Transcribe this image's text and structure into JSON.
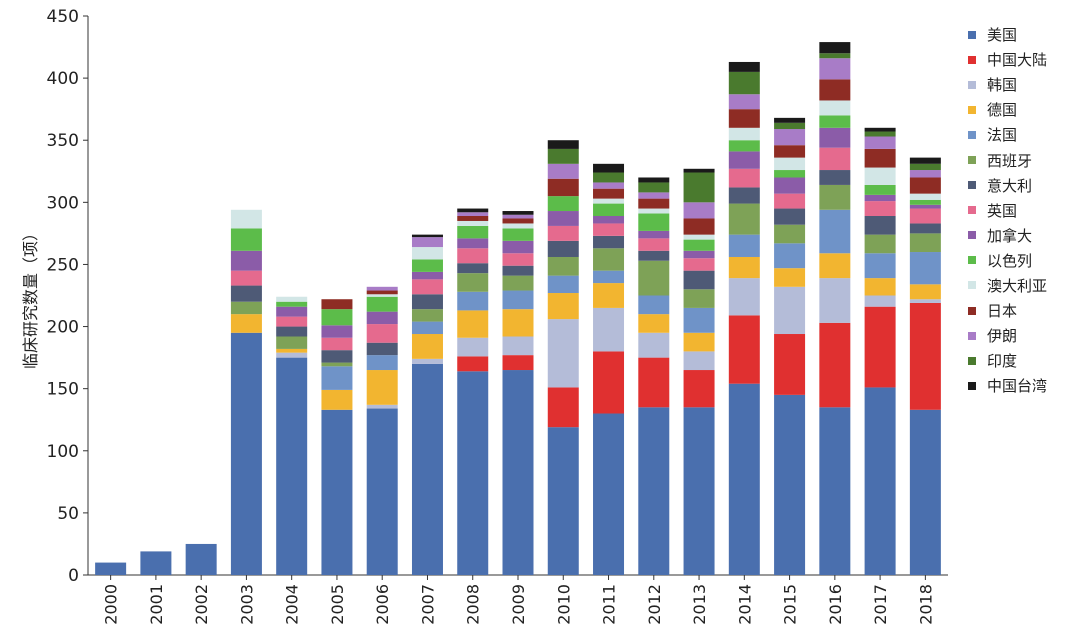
{
  "chart_data": {
    "type": "bar",
    "stacked": true,
    "title": "",
    "xlabel": "",
    "ylabel": "临床研究数量（项）",
    "ylim": [
      0,
      450
    ],
    "yticks": [
      0,
      50,
      100,
      150,
      200,
      250,
      300,
      350,
      400,
      450
    ],
    "grid": false,
    "legend_position": "right",
    "categories": [
      "2000",
      "2001",
      "2002",
      "2003",
      "2004",
      "2005",
      "2006",
      "2007",
      "2008",
      "2009",
      "2010",
      "2011",
      "2012",
      "2013",
      "2014",
      "2015",
      "2016",
      "2017",
      "2018"
    ],
    "series": [
      {
        "name": "美国",
        "color": "#4a6fae",
        "values": [
          10,
          19,
          25,
          195,
          175,
          133,
          134,
          170,
          164,
          165,
          119,
          130,
          135,
          135,
          154,
          145,
          135,
          151,
          133
        ]
      },
      {
        "name": "中国大陆",
        "color": "#e03030",
        "values": [
          0,
          0,
          0,
          0,
          0,
          0,
          0,
          0,
          12,
          12,
          32,
          50,
          40,
          30,
          55,
          49,
          68,
          65,
          86
        ]
      },
      {
        "name": "韩国",
        "color": "#b4bcd8",
        "values": [
          0,
          0,
          0,
          0,
          4,
          0,
          3,
          4,
          15,
          15,
          55,
          35,
          20,
          15,
          30,
          38,
          36,
          9,
          3
        ]
      },
      {
        "name": "德国",
        "color": "#f2b530",
        "values": [
          0,
          0,
          0,
          15,
          3,
          16,
          28,
          20,
          22,
          22,
          21,
          20,
          15,
          15,
          17,
          15,
          20,
          14,
          12
        ]
      },
      {
        "name": "法国",
        "color": "#6f93c8",
        "values": [
          0,
          0,
          0,
          0,
          0,
          19,
          12,
          10,
          15,
          15,
          14,
          10,
          15,
          20,
          18,
          20,
          35,
          20,
          26
        ]
      },
      {
        "name": "西班牙",
        "color": "#7ea257",
        "values": [
          0,
          0,
          0,
          10,
          10,
          3,
          0,
          10,
          15,
          12,
          15,
          18,
          28,
          15,
          25,
          15,
          20,
          15,
          15
        ]
      },
      {
        "name": "意大利",
        "color": "#4e5a76",
        "values": [
          0,
          0,
          0,
          13,
          8,
          10,
          10,
          12,
          8,
          8,
          13,
          10,
          8,
          15,
          13,
          13,
          12,
          15,
          8
        ]
      },
      {
        "name": "英国",
        "color": "#e56a8e",
        "values": [
          0,
          0,
          0,
          12,
          8,
          10,
          15,
          12,
          12,
          10,
          12,
          10,
          10,
          10,
          15,
          12,
          18,
          12,
          12
        ]
      },
      {
        "name": "加拿大",
        "color": "#8b5ca8",
        "values": [
          0,
          0,
          0,
          16,
          8,
          10,
          10,
          6,
          8,
          10,
          12,
          6,
          6,
          6,
          14,
          13,
          16,
          5,
          3
        ]
      },
      {
        "name": "以色列",
        "color": "#5cbc4a",
        "values": [
          0,
          0,
          0,
          18,
          4,
          13,
          12,
          10,
          10,
          10,
          12,
          10,
          14,
          9,
          9,
          6,
          10,
          8,
          4
        ]
      },
      {
        "name": "澳大利亚",
        "color": "#d2e6e6",
        "values": [
          0,
          0,
          0,
          15,
          4,
          0,
          2,
          10,
          4,
          4,
          0,
          4,
          4,
          4,
          10,
          10,
          12,
          14,
          5
        ]
      },
      {
        "name": "日本",
        "color": "#8e2c24",
        "values": [
          0,
          0,
          0,
          0,
          0,
          8,
          3,
          0,
          4,
          4,
          14,
          8,
          8,
          13,
          15,
          10,
          17,
          15,
          13
        ]
      },
      {
        "name": "伊朗",
        "color": "#a87cc7",
        "values": [
          0,
          0,
          0,
          0,
          0,
          0,
          3,
          8,
          3,
          3,
          12,
          5,
          5,
          13,
          12,
          13,
          17,
          10,
          6
        ]
      },
      {
        "name": "印度",
        "color": "#4a7a2e",
        "values": [
          0,
          0,
          0,
          0,
          0,
          0,
          0,
          0,
          0,
          0,
          12,
          8,
          8,
          24,
          18,
          5,
          4,
          4,
          5
        ]
      },
      {
        "name": "中国台湾",
        "color": "#1a1a1a",
        "values": [
          0,
          0,
          0,
          0,
          0,
          0,
          0,
          2,
          3,
          3,
          7,
          7,
          4,
          3,
          8,
          4,
          9,
          3,
          5
        ]
      }
    ]
  }
}
